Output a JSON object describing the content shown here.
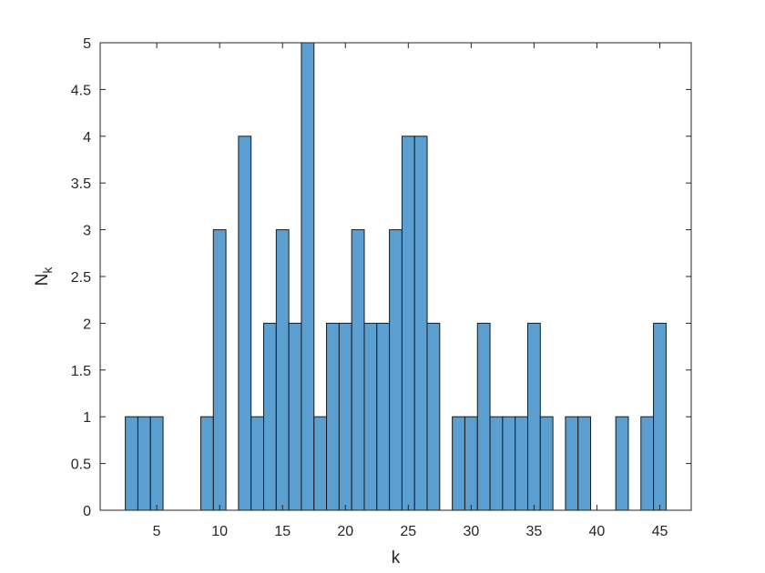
{
  "chart_data": {
    "type": "bar",
    "title": "",
    "xlabel": "k",
    "ylabel": "N",
    "ylabel_subscript": "k",
    "xlim": [
      0.5,
      47.5
    ],
    "ylim": [
      0,
      5
    ],
    "grid": false,
    "bar_color": "#5b9fd1",
    "bar_edge_color": "#1a1a1a",
    "x_ticks": [
      "5",
      "10",
      "15",
      "20",
      "25",
      "30",
      "35",
      "40",
      "45"
    ],
    "y_ticks": [
      "0",
      "0.5",
      "1",
      "1.5",
      "2",
      "2.5",
      "3",
      "3.5",
      "4",
      "4.5",
      "5"
    ],
    "points": [
      {
        "k": 3,
        "n": 1
      },
      {
        "k": 4,
        "n": 1
      },
      {
        "k": 5,
        "n": 1
      },
      {
        "k": 9,
        "n": 1
      },
      {
        "k": 10,
        "n": 3
      },
      {
        "k": 12,
        "n": 4
      },
      {
        "k": 13,
        "n": 1
      },
      {
        "k": 14,
        "n": 2
      },
      {
        "k": 15,
        "n": 3
      },
      {
        "k": 16,
        "n": 2
      },
      {
        "k": 17,
        "n": 5
      },
      {
        "k": 18,
        "n": 1
      },
      {
        "k": 19,
        "n": 2
      },
      {
        "k": 20,
        "n": 2
      },
      {
        "k": 21,
        "n": 3
      },
      {
        "k": 22,
        "n": 2
      },
      {
        "k": 23,
        "n": 2
      },
      {
        "k": 24,
        "n": 3
      },
      {
        "k": 25,
        "n": 4
      },
      {
        "k": 26,
        "n": 4
      },
      {
        "k": 27,
        "n": 2
      },
      {
        "k": 29,
        "n": 1
      },
      {
        "k": 30,
        "n": 1
      },
      {
        "k": 31,
        "n": 2
      },
      {
        "k": 32,
        "n": 1
      },
      {
        "k": 33,
        "n": 1
      },
      {
        "k": 34,
        "n": 1
      },
      {
        "k": 35,
        "n": 2
      },
      {
        "k": 36,
        "n": 1
      },
      {
        "k": 38,
        "n": 1
      },
      {
        "k": 39,
        "n": 1
      },
      {
        "k": 42,
        "n": 1
      },
      {
        "k": 44,
        "n": 1
      },
      {
        "k": 45,
        "n": 2
      }
    ]
  }
}
